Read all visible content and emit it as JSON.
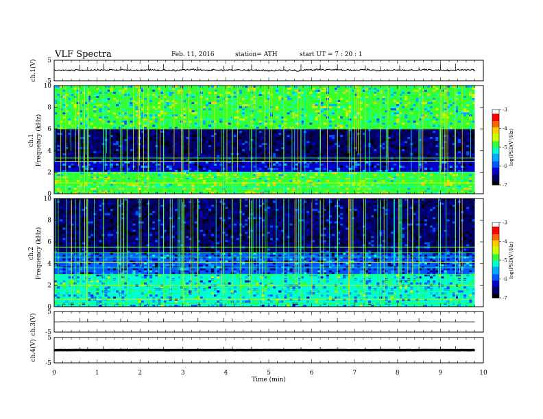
{
  "header": {
    "title": "VLF  Spectra",
    "date": "Feb. 11, 2016",
    "station": "station= ATH",
    "start": "start  UT  =   7  : 20 : 1"
  },
  "colors": {
    "spectrogram_scale": [
      "#000000",
      "#000066",
      "#0000cc",
      "#0055ff",
      "#00aaff",
      "#00ffcc",
      "#33ff33",
      "#ccff00",
      "#ffcc00",
      "#ff6600",
      "#ff0000",
      "#ffffff"
    ],
    "trace": "#000000"
  },
  "chart_data": [
    {
      "type": "line",
      "ylabel": "ch.1(V)",
      "ylim": [
        -5,
        5
      ],
      "yticks": [
        "5",
        "-5"
      ],
      "approx_level": 0.2
    },
    {
      "type": "heatmap",
      "ylabel": "Frequency  (kHz)",
      "channel": "ch.1",
      "ylim": [
        0,
        10
      ],
      "yticks": [
        "10",
        "8",
        "6",
        "4",
        "2",
        "0"
      ],
      "colorbar": {
        "label": "log(PSD(V²/Hz)",
        "range": [
          -7,
          -3
        ],
        "ticks": [
          "-3",
          "-4",
          "-5",
          "-6",
          "-7"
        ]
      },
      "bands_khz": [
        {
          "range": [
            0,
            2
          ],
          "level": -4.5
        },
        {
          "range": [
            2,
            3
          ],
          "level": -6.2
        },
        {
          "range": [
            3,
            6
          ],
          "level": -6.7
        },
        {
          "range": [
            6,
            10
          ],
          "level": -4.8
        }
      ],
      "lines_khz": [
        0.3,
        0.6,
        1.0,
        1.3,
        1.6,
        2.0,
        3.0,
        3.3,
        6.0
      ]
    },
    {
      "type": "heatmap",
      "ylabel": "Frequency  (kHz)",
      "channel": "ch.2",
      "ylim": [
        0,
        10
      ],
      "yticks": [
        "10",
        "8",
        "6",
        "4",
        "2",
        "0"
      ],
      "colorbar": {
        "label": "log(PSD(V²/Hz)",
        "range": [
          -7,
          -3
        ],
        "ticks": [
          "-3",
          "-4",
          "-5",
          "-6",
          "-7"
        ]
      },
      "bands_khz": [
        {
          "range": [
            0,
            3
          ],
          "level": -5.2
        },
        {
          "range": [
            3,
            5
          ],
          "level": -6.0
        },
        {
          "range": [
            5,
            10
          ],
          "level": -6.6
        }
      ],
      "lines_khz": [
        0.3,
        0.7,
        1.2,
        1.6,
        2.0,
        2.5,
        3.0,
        3.6,
        4.1,
        4.6,
        5.0,
        5.5
      ]
    },
    {
      "type": "line",
      "ylabel": "ch.3(V)",
      "ylim": [
        -5,
        5
      ],
      "yticks": [
        "5",
        "-5"
      ],
      "approx_level": 0
    },
    {
      "type": "line",
      "ylabel": "ch.4(V)",
      "ylim": [
        -5,
        5
      ],
      "yticks": [
        "5",
        "-5"
      ],
      "approx_level": 0
    }
  ],
  "x_axis": {
    "label": "Time  (min)",
    "range": [
      0,
      10
    ],
    "ticks": [
      "0",
      "1",
      "2",
      "3",
      "4",
      "5",
      "6",
      "7",
      "8",
      "9",
      "10"
    ],
    "data_end": 9.8
  },
  "spikes_min": [
    0.6,
    0.78,
    1.15,
    1.55,
    1.7,
    2.2,
    2.55,
    3.0,
    3.35,
    3.95,
    4.15,
    4.6,
    5.35,
    5.75,
    6.2,
    6.6,
    7.25,
    7.6,
    8.05,
    8.5,
    9.0,
    9.35
  ]
}
